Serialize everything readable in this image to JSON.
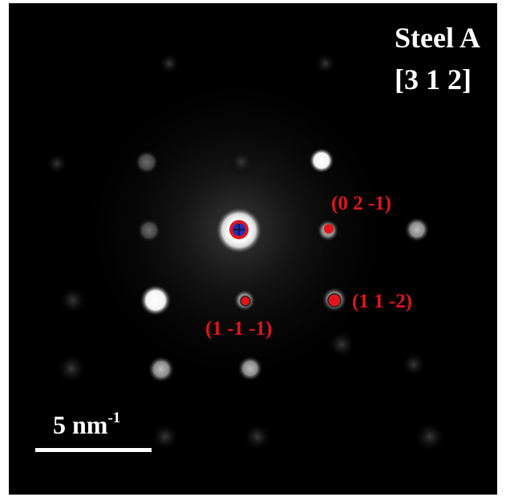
{
  "sample": {
    "title": "Steel A",
    "zone_axis": "[3 1 2]"
  },
  "reflections": [
    {
      "id": "0-2-m1",
      "label": "(0 2 -1)"
    },
    {
      "id": "1-1-m2",
      "label": "(1 1 -2)"
    },
    {
      "id": "1-m1-m1",
      "label": "(1 -1 -1)"
    }
  ],
  "scale_bar": {
    "value_text": "5 nm",
    "exponent": "-1"
  },
  "colors": {
    "background": "#000000",
    "spot": "#ffffff",
    "indexed_marker": "#e4141b",
    "transmitted_beam_marker": "#1f2fbf",
    "text": "#ffffff"
  }
}
